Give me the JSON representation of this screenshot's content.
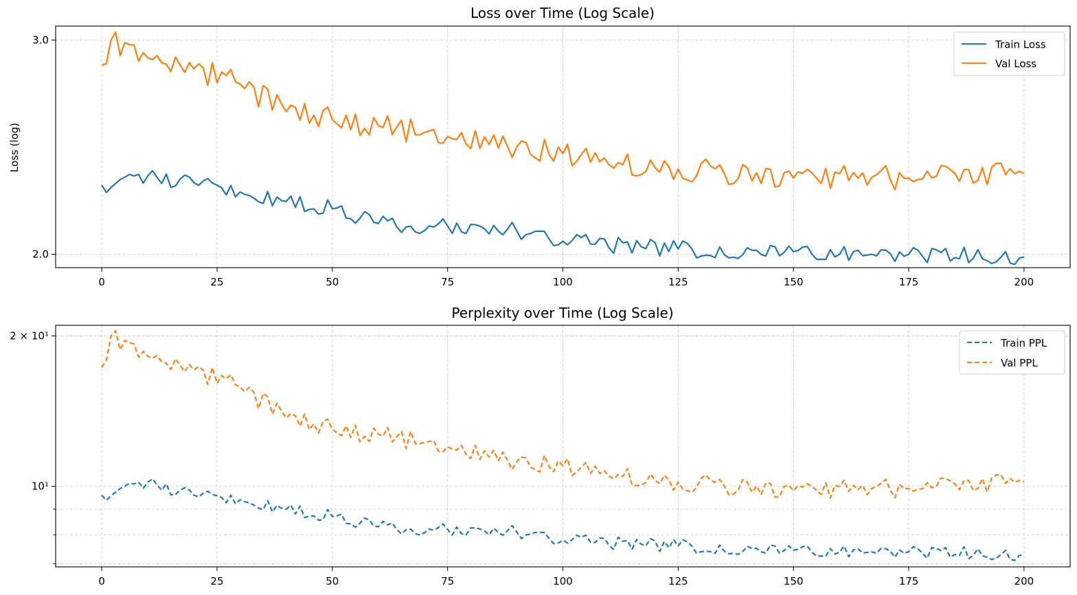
{
  "colors": {
    "train": "#1f77b4",
    "val": "#ff7f0e"
  },
  "chart_data": [
    {
      "type": "line",
      "title": "Loss over Time (Log Scale)",
      "xlabel": "",
      "ylabel": "Loss (log)",
      "yscale": "log",
      "xlim": [
        -10,
        210
      ],
      "ylim": [
        1.95,
        3.08
      ],
      "xticks": [
        0,
        25,
        50,
        75,
        100,
        125,
        150,
        175,
        200
      ],
      "xtick_labels": [
        "0",
        "25",
        "50",
        "75",
        "100",
        "125",
        "150",
        "175",
        "200"
      ],
      "yticks": [
        2.0,
        3.0
      ],
      "ytick_labels": [
        "2.0",
        "3.0"
      ],
      "legend": "top-right",
      "dash": false,
      "series": [
        {
          "name": "Train Loss",
          "color_key": "train",
          "x": [
            0,
            10,
            20,
            30,
            40,
            50,
            60,
            75,
            90,
            100,
            125,
            150,
            175,
            200
          ],
          "values": [
            2.28,
            2.32,
            2.29,
            2.25,
            2.21,
            2.18,
            2.12,
            2.11,
            2.09,
            2.05,
            2.02,
            2.01,
            2.0,
            1.99
          ]
        },
        {
          "name": "Val Loss",
          "color_key": "val",
          "x": [
            0,
            2,
            10,
            20,
            30,
            40,
            50,
            60,
            75,
            90,
            100,
            125,
            150,
            175,
            200
          ],
          "values": [
            2.86,
            3.0,
            2.9,
            2.84,
            2.76,
            2.62,
            2.58,
            2.55,
            2.5,
            2.45,
            2.42,
            2.35,
            2.31,
            2.31,
            2.33
          ]
        }
      ]
    },
    {
      "type": "line",
      "title": "Perplexity over Time (Log Scale)",
      "xlabel": "",
      "ylabel": "",
      "yscale": "log",
      "xlim": [
        -10,
        210
      ],
      "ylim": [
        6.9,
        21.0
      ],
      "xticks": [
        0,
        25,
        50,
        75,
        100,
        125,
        150,
        175,
        200
      ],
      "xtick_labels": [
        "0",
        "25",
        "50",
        "75",
        "100",
        "125",
        "150",
        "175",
        "200"
      ],
      "yticks": [
        10,
        20
      ],
      "ytick_labels": [
        "10¹",
        "2 × 10¹"
      ],
      "yticks_minor": [
        7,
        8,
        9
      ],
      "legend": "top-right",
      "dash": true,
      "series": [
        {
          "name": "Train PPL",
          "color_key": "train",
          "x": [
            0,
            10,
            20,
            30,
            40,
            50,
            60,
            75,
            90,
            100,
            125,
            150,
            175,
            200
          ],
          "values": [
            9.6,
            10.2,
            9.6,
            9.4,
            9.0,
            8.7,
            8.3,
            8.2,
            8.1,
            7.8,
            7.6,
            7.45,
            7.4,
            7.3
          ]
        },
        {
          "name": "Val PPL",
          "color_key": "val",
          "x": [
            0,
            2,
            10,
            20,
            30,
            40,
            50,
            60,
            75,
            90,
            100,
            125,
            150,
            175,
            200
          ],
          "values": [
            17.3,
            20.0,
            18.2,
            17.1,
            15.8,
            13.7,
            13.0,
            12.7,
            12.0,
            11.2,
            11.0,
            10.2,
            9.8,
            9.9,
            10.2
          ]
        }
      ]
    }
  ]
}
